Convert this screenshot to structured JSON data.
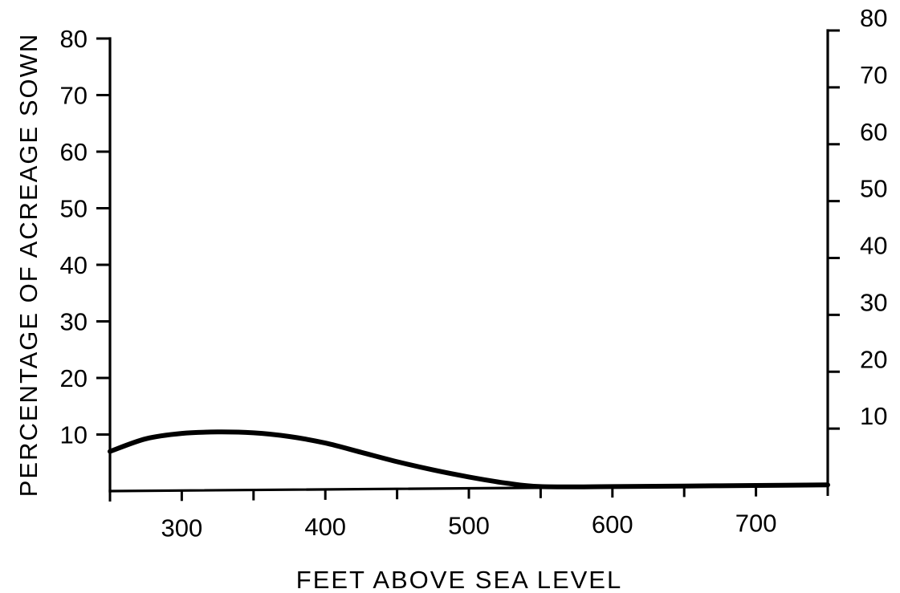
{
  "chart_data": {
    "type": "line",
    "title": "",
    "xlabel": "FEET ABOVE SEA LEVEL",
    "ylabel": "PERCENTAGE OF ACREAGE SOWN",
    "xlim": [
      250,
      750
    ],
    "ylim": [
      0,
      80
    ],
    "x_ticks": [
      250,
      300,
      350,
      400,
      450,
      500,
      550,
      600,
      650,
      700,
      750
    ],
    "x_tick_labels": [
      "300",
      "400",
      "500",
      "600",
      "700"
    ],
    "x_tick_label_values": [
      300,
      400,
      500,
      600,
      700
    ],
    "y_left_ticks": [
      10,
      20,
      30,
      40,
      50,
      60,
      70,
      80
    ],
    "y_left_tick_labels": [
      "10",
      "20",
      "30",
      "40",
      "50",
      "60",
      "70",
      "80"
    ],
    "y_right_ticks": [
      10,
      20,
      30,
      40,
      50,
      60,
      70,
      80
    ],
    "y_right_tick_labels": [
      "10",
      "20",
      "30",
      "40",
      "50",
      "60",
      "70",
      "80"
    ],
    "grid": false,
    "series": [
      {
        "x": [
          250,
          275,
          300,
          325,
          350,
          375,
          400,
          425,
          450,
          475,
          500,
          525,
          550,
          600,
          650,
          700,
          750
        ],
        "y": [
          7.0,
          9.2,
          10.1,
          10.3,
          10.1,
          9.4,
          8.2,
          6.5,
          4.8,
          3.3,
          2.0,
          0.9,
          0.2,
          0.1,
          0.1,
          0.1,
          0.1
        ]
      }
    ]
  }
}
